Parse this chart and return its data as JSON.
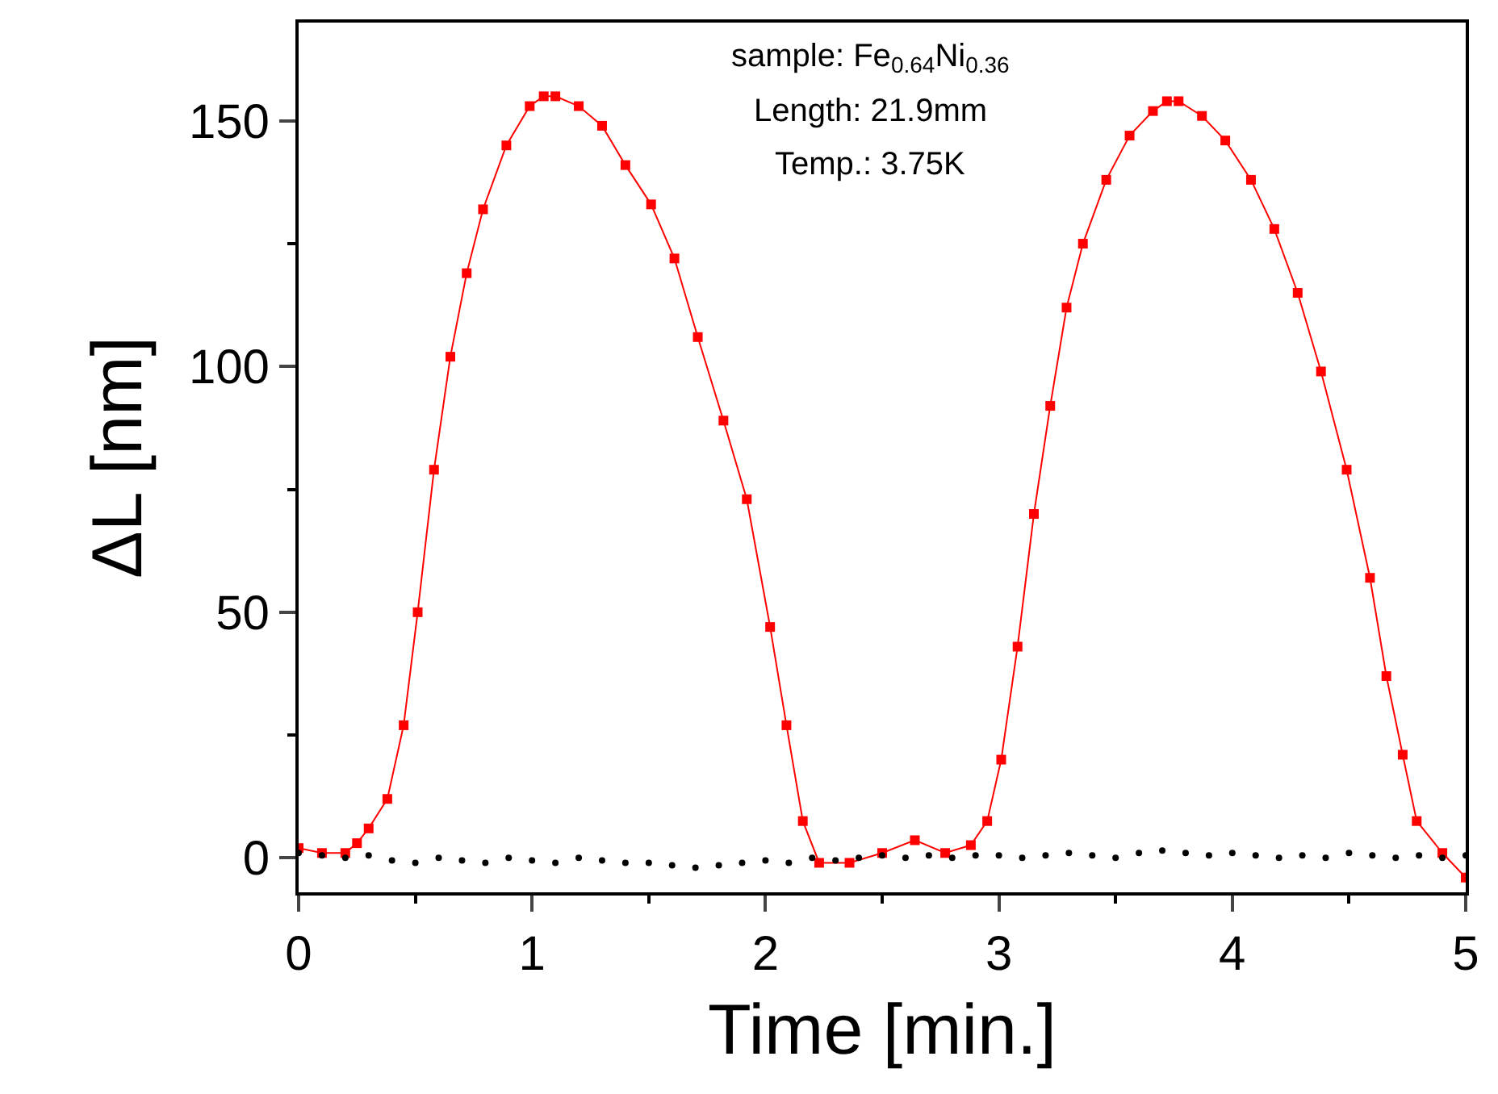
{
  "chart_data": {
    "type": "line",
    "xlabel": "Time [min.]",
    "ylabel": "ΔL [nm]",
    "annotations": [
      "sample: Fe$_{0.64}$Ni$_{0.36}$",
      "Length: 21.9mm",
      "Temp.: 3.75K"
    ],
    "xlim": [
      0,
      5
    ],
    "ylim": [
      -7,
      170
    ],
    "xticks": [
      0,
      {
        "value": 0.5,
        "label": null
      },
      1,
      {
        "value": 1.5,
        "label": null
      },
      2,
      {
        "value": 2.5,
        "label": null
      },
      3,
      {
        "value": 3.5,
        "label": null
      },
      4,
      {
        "value": 4.5,
        "label": null
      },
      5
    ],
    "yticks": [
      0,
      {
        "value": 25,
        "label": null
      },
      50,
      {
        "value": 75,
        "label": null
      },
      100,
      {
        "value": 125,
        "label": null
      },
      150
    ],
    "series": [
      {
        "marker": "square",
        "color": "#ff0000",
        "x": [
          0,
          0.1,
          0.2,
          0.25,
          0.3,
          0.38,
          0.45,
          0.51,
          0.58,
          0.65,
          0.72,
          0.79,
          0.89,
          0.99,
          1.05,
          1.1,
          1.2,
          1.3,
          1.4,
          1.51,
          1.61,
          1.71,
          1.82,
          1.92,
          2.02,
          2.09,
          2.16,
          2.23,
          2.36,
          2.5,
          2.64,
          2.77,
          2.88,
          2.95,
          3.01,
          3.08,
          3.15,
          3.22,
          3.29,
          3.36,
          3.46,
          3.56,
          3.66,
          3.72,
          3.77,
          3.87,
          3.97,
          4.08,
          4.18,
          4.28,
          4.38,
          4.49,
          4.59,
          4.66,
          4.73,
          4.79,
          4.9,
          5
        ],
        "values": [
          2,
          1,
          1,
          3,
          6,
          12,
          27,
          50,
          79,
          102,
          119,
          132,
          145,
          153,
          155,
          155,
          153,
          149,
          141,
          133,
          122,
          106,
          89,
          73,
          47,
          27,
          7.5,
          -1,
          -1,
          1,
          3.6,
          1,
          2.6,
          7.5,
          20,
          43,
          70,
          92,
          112,
          125,
          138,
          147,
          152,
          154,
          154,
          151,
          146,
          138,
          128,
          115,
          99,
          79,
          57,
          37,
          21,
          7.5,
          1,
          -4
        ]
      },
      {
        "type": "scatter",
        "marker": "circle",
        "color": "#000000",
        "x": [
          0,
          0.1,
          0.2,
          0.3,
          0.4,
          0.5,
          0.6,
          0.7,
          0.8,
          0.9,
          1.0,
          1.1,
          1.2,
          1.3,
          1.4,
          1.5,
          1.6,
          1.7,
          1.8,
          1.9,
          2.0,
          2.1,
          2.2,
          2.3,
          2.4,
          2.5,
          2.6,
          2.7,
          2.8,
          2.9,
          3.0,
          3.1,
          3.2,
          3.3,
          3.4,
          3.5,
          3.6,
          3.7,
          3.8,
          3.9,
          4.0,
          4.1,
          4.2,
          4.3,
          4.4,
          4.5,
          4.6,
          4.7,
          4.8,
          4.9,
          5.0
        ],
        "values": [
          1,
          0.5,
          0,
          0.5,
          -0.5,
          -1,
          0,
          -0.5,
          -1,
          0,
          -0.5,
          -1,
          0,
          -0.5,
          -1,
          -1,
          -1.5,
          -2,
          -1.5,
          -1,
          -0.5,
          -1,
          0,
          -0.5,
          0,
          0.5,
          0,
          0.5,
          0,
          0.5,
          0.5,
          0,
          0.5,
          1,
          0.5,
          0,
          1,
          1.5,
          1,
          0.5,
          1,
          0.5,
          0,
          0.5,
          0,
          1,
          0.5,
          0,
          0.5,
          0,
          0.5
        ]
      }
    ]
  }
}
